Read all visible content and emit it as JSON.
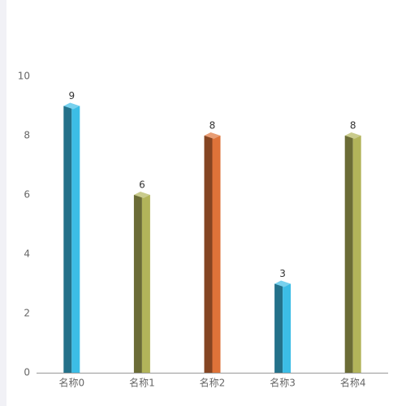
{
  "chart_data": {
    "type": "bar3d",
    "categories": [
      "名称0",
      "名称1",
      "名称2",
      "名称3",
      "名称4"
    ],
    "values": [
      9,
      6,
      8,
      3,
      8
    ],
    "colors": [
      "#3cbde6",
      "#b2b45a",
      "#de7339",
      "#3cbde6",
      "#b2b45a"
    ],
    "ylim": [
      0,
      10
    ],
    "yticks": [
      0,
      2,
      4,
      6,
      8,
      10
    ],
    "grid": false
  }
}
